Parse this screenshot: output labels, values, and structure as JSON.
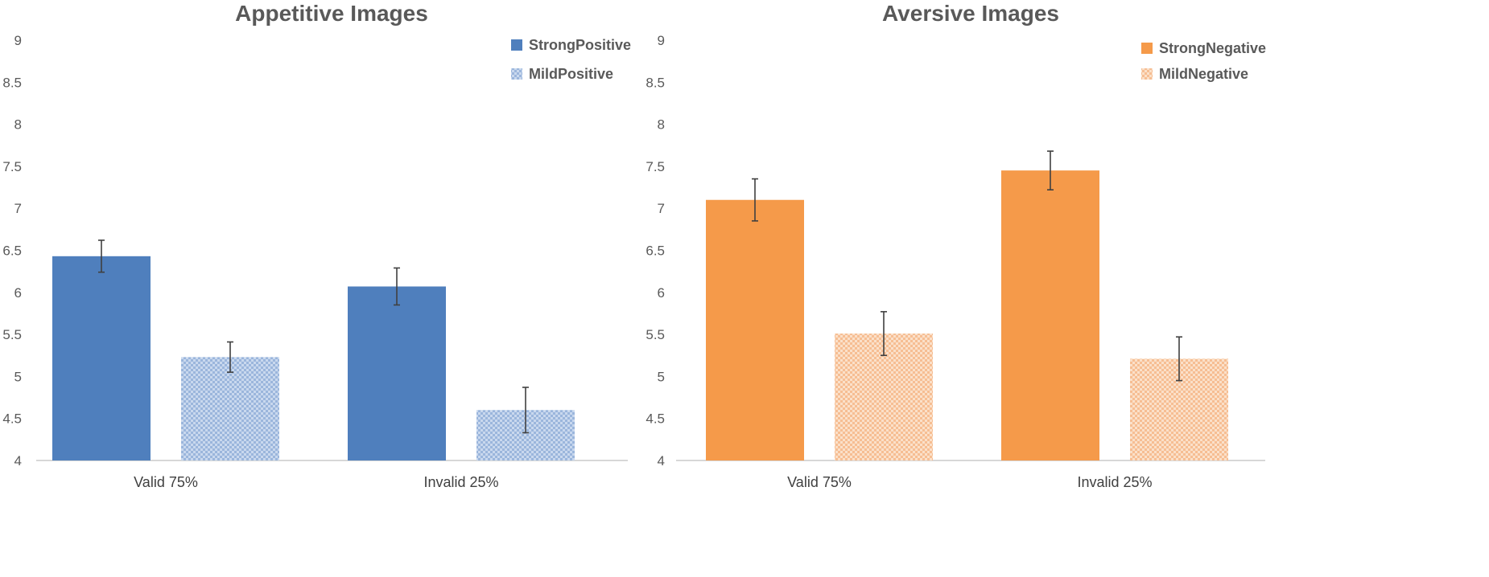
{
  "chart_data": [
    {
      "type": "bar",
      "title": "Appetitive Images",
      "xlabel": "",
      "ylabel": "",
      "ylim": [
        4,
        9
      ],
      "yticks": [
        "4",
        "4.5",
        "5",
        "5.5",
        "6",
        "6.5",
        "7",
        "7.5",
        "8",
        "8.5",
        "9"
      ],
      "categories": [
        "Valid 75%",
        "Invalid 25%"
      ],
      "legend_position": "top-right",
      "series": [
        {
          "name": "StrongPositive",
          "color": "#4f7fbd",
          "pattern": "solid",
          "values": [
            6.43,
            6.07
          ],
          "errors": [
            0.19,
            0.22
          ]
        },
        {
          "name": "MildPositive",
          "color": "#a9c0e0",
          "pattern": "checker",
          "values": [
            5.23,
            4.6
          ],
          "errors": [
            0.18,
            0.27
          ]
        }
      ]
    },
    {
      "type": "bar",
      "title": "Aversive Images",
      "xlabel": "",
      "ylabel": "",
      "ylim": [
        4,
        9
      ],
      "yticks": [
        "4",
        "4.5",
        "5",
        "5.5",
        "6",
        "6.5",
        "7",
        "7.5",
        "8",
        "8.5",
        "9"
      ],
      "categories": [
        "Valid 75%",
        "Invalid 25%"
      ],
      "legend_position": "top-right",
      "series": [
        {
          "name": "StrongNegative",
          "color": "#f59a4a",
          "pattern": "solid",
          "values": [
            7.1,
            7.45
          ],
          "errors": [
            0.25,
            0.23
          ]
        },
        {
          "name": "MildNegative",
          "color": "#f8c9a4",
          "pattern": "checker",
          "values": [
            5.51,
            5.21
          ],
          "errors": [
            0.26,
            0.26
          ]
        }
      ]
    }
  ]
}
